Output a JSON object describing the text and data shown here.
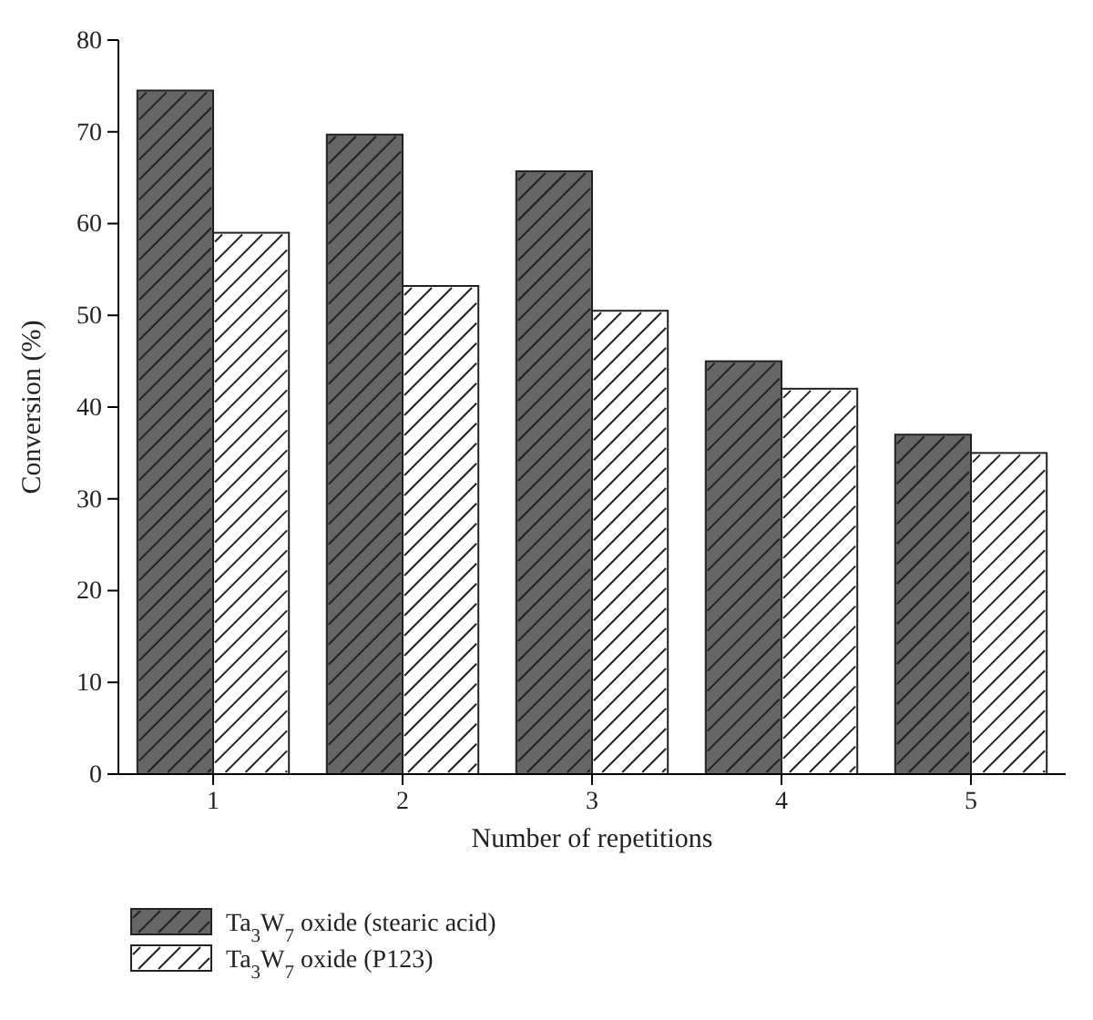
{
  "chart_data": {
    "type": "bar",
    "xlabel": "Number of repetitions",
    "ylabel": "Conversion (%)",
    "categories": [
      "1",
      "2",
      "3",
      "4",
      "5"
    ],
    "series": [
      {
        "name": "Ta$_{3}$W$_{7}$ oxide (stearic acid)",
        "color": "#666666",
        "values": [
          74.5,
          69.7,
          65.7,
          45,
          37
        ]
      },
      {
        "name": "Ta$_{3}$W$_{7}$ oxide (P123)",
        "color": "#ffffff",
        "values": [
          59,
          53.2,
          50.5,
          42,
          35
        ]
      }
    ],
    "ylim": [
      0,
      80
    ],
    "yticks": [
      0,
      10,
      20,
      30,
      40,
      50,
      60,
      70,
      80
    ],
    "grid": false,
    "legend": "bottom"
  }
}
